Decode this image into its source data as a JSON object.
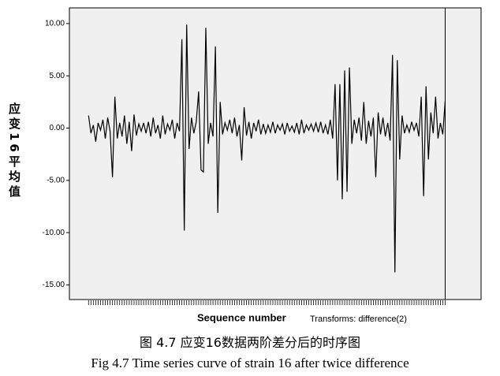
{
  "chart_data": {
    "type": "line",
    "y_label": "应变16平均值",
    "x_label": "Sequence number",
    "x_note": "Transforms: difference(2)",
    "color": "#000000",
    "values": [
      1.2,
      -0.5,
      0.3,
      -1.3,
      0.5,
      -0.2,
      0.8,
      -1.0,
      1.0,
      -0.3,
      -4.7,
      3.0,
      -1.0,
      0.5,
      -0.8,
      1.2,
      -1.5,
      0.6,
      -2.2,
      1.3,
      -0.7,
      0.4,
      -0.3,
      0.5,
      -0.5,
      0.6,
      -0.8,
      1.0,
      -0.5,
      0.3,
      -1.0,
      1.2,
      -0.6,
      0.4,
      -0.2,
      0.8,
      -1.0,
      0.5,
      -0.3,
      8.5,
      -9.8,
      9.9,
      -2.0,
      1.0,
      -0.5,
      0.6,
      3.5,
      -4.0,
      -4.2,
      9.6,
      -1.5,
      0.5,
      -0.8,
      7.8,
      -8.1,
      2.5,
      -0.6,
      0.5,
      -0.2,
      0.8,
      -0.5,
      1.0,
      -0.8,
      0.3,
      -3.1,
      2.0,
      -0.7,
      0.6,
      -1.0,
      0.5,
      -0.3,
      0.8,
      -0.6,
      0.4,
      -0.5,
      0.3,
      -0.4,
      0.6,
      -0.5,
      0.3,
      -0.2,
      0.4,
      -0.6,
      0.5,
      -0.3,
      0.2,
      -0.4,
      0.5,
      -0.6,
      0.8,
      -0.5,
      0.3,
      -0.2,
      0.4,
      -0.3,
      0.5,
      -0.4,
      0.6,
      -0.5,
      0.3,
      -0.6,
      0.8,
      -1.0,
      4.2,
      -5.0,
      4.2,
      -6.8,
      5.5,
      -6.1,
      5.8,
      -1.5,
      0.8,
      -0.5,
      1.0,
      -1.2,
      2.5,
      -1.5,
      0.7,
      -0.8,
      1.0,
      -4.7,
      1.5,
      -0.6,
      1.0,
      -0.8,
      0.5,
      -1.2,
      7.0,
      -13.8,
      6.5,
      -3.0,
      1.2,
      -0.5,
      0.3,
      -0.4,
      0.6,
      -0.2,
      0.5,
      -0.8,
      3.0,
      -6.5,
      4.0,
      -3.0,
      1.5,
      -0.5,
      3.0,
      -1.0,
      0.5,
      -0.6,
      2.6
    ],
    "xlim": [
      -8,
      164
    ],
    "reference_line_x": 149,
    "ylim": [
      -16.4,
      11.5
    ],
    "yticks": [
      {
        "value": 10,
        "label": "10.00"
      },
      {
        "value": 5,
        "label": "5.00"
      },
      {
        "value": 0,
        "label": "0.00"
      },
      {
        "value": -5,
        "label": "-5.00"
      },
      {
        "value": -10,
        "label": "-10.00"
      },
      {
        "value": -15,
        "label": "-15.00"
      }
    ]
  },
  "caption_cn": "图 4.7 应变16数据两阶差分后的时序图",
  "caption_en": "Fig 4.7 Time series curve of strain 16 after twice difference"
}
